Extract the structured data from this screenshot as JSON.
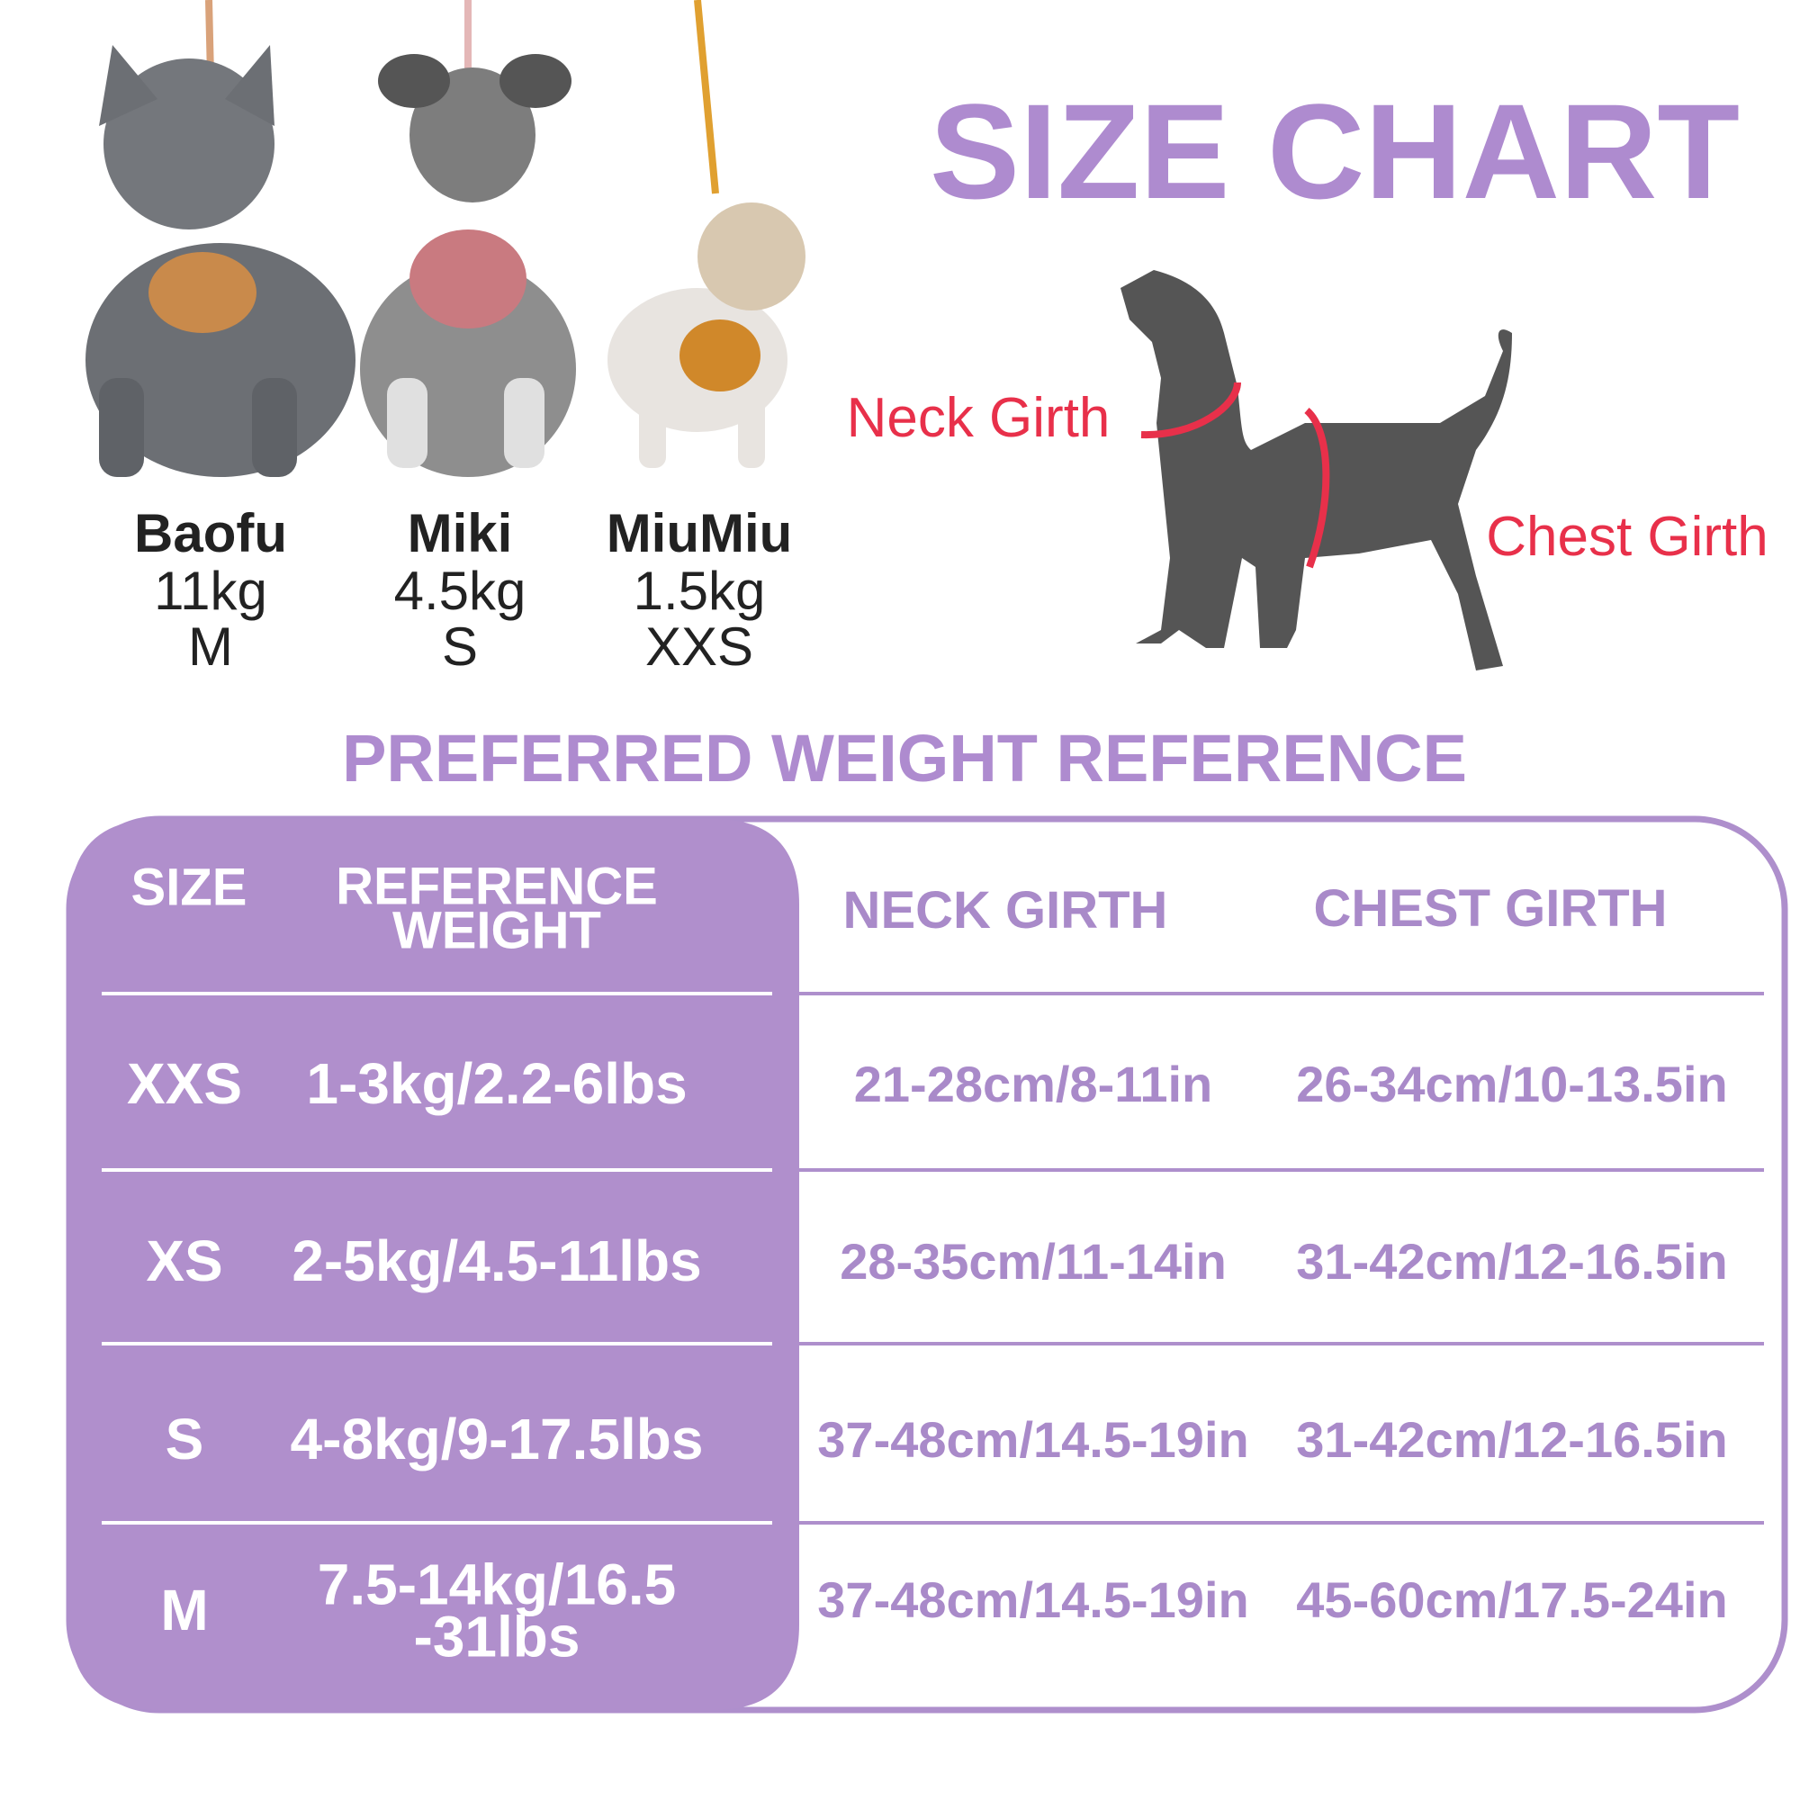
{
  "header": {
    "title": "SIZE CHART"
  },
  "dogs": [
    {
      "name": "Baofu",
      "weight": "11kg",
      "size": "M"
    },
    {
      "name": "Miki",
      "weight": "4.5kg",
      "size": "S"
    },
    {
      "name": "MiuMiu",
      "weight": "1.5kg",
      "size": "XXS"
    }
  ],
  "diagram": {
    "neck_label": "Neck Girth",
    "chest_label": "Chest Girth"
  },
  "section_title": "PREFERRED WEIGHT REFERENCE",
  "table": {
    "headers": [
      "SIZE",
      "REFERENCE\nWEIGHT",
      "NECK GIRTH",
      "CHEST GIRTH"
    ],
    "rows": [
      [
        "XXS",
        "1-3kg/2.2-6lbs",
        "21-28cm/8-11in",
        "26-34cm/10-13.5in"
      ],
      [
        "XS",
        "2-5kg/4.5-11lbs",
        "28-35cm/11-14in",
        "31-42cm/12-16.5in"
      ],
      [
        "S",
        "4-8kg/9-17.5lbs",
        "37-48cm/14.5-19in",
        "31-42cm/12-16.5in"
      ],
      [
        "M",
        "7.5-14kg/16.5\n-31lbs",
        "37-48cm/14.5-19in",
        "45-60cm/17.5-24in"
      ]
    ]
  }
}
